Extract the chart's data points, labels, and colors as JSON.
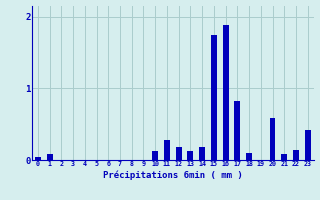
{
  "categories": [
    0,
    1,
    2,
    3,
    4,
    5,
    6,
    7,
    8,
    9,
    10,
    11,
    12,
    13,
    14,
    15,
    16,
    17,
    18,
    19,
    20,
    21,
    22,
    23
  ],
  "values": [
    0.04,
    0.08,
    0.0,
    0.0,
    0.0,
    0.0,
    0.0,
    0.0,
    0.0,
    0.0,
    0.12,
    0.28,
    0.18,
    0.12,
    0.18,
    1.75,
    1.88,
    0.82,
    0.1,
    0.0,
    0.58,
    0.08,
    0.14,
    0.42
  ],
  "bar_color": "#0000bb",
  "bg_color": "#d6eeee",
  "grid_color": "#aacccc",
  "axis_color": "#0000bb",
  "xlabel": "Précipitations 6min ( mm )",
  "ylim": [
    0,
    2.15
  ],
  "yticks": [
    0,
    1,
    2
  ],
  "xlim": [
    -0.5,
    23.5
  ]
}
